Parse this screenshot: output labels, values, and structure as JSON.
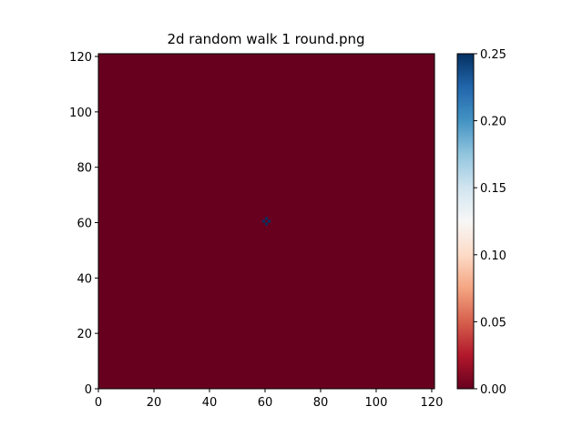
{
  "chart_data": {
    "type": "heatmap",
    "title": "2d random walk 1 round.png",
    "xlabel": "",
    "ylabel": "",
    "xlim": [
      0,
      121
    ],
    "ylim": [
      0,
      121
    ],
    "x_ticks": [
      0,
      20,
      40,
      60,
      80,
      100,
      120
    ],
    "y_ticks": [
      0,
      20,
      40,
      60,
      80,
      100,
      120
    ],
    "colormap": "RdBu",
    "background_value": 0.0,
    "nonzero_cells": [
      {
        "x": 60,
        "y": 61,
        "value": 0.25
      },
      {
        "x": 61,
        "y": 60,
        "value": 0.25
      },
      {
        "x": 60,
        "y": 59,
        "value": 0.25
      },
      {
        "x": 59,
        "y": 60,
        "value": 0.25
      }
    ],
    "colorbar": {
      "range": [
        0.0,
        0.25
      ],
      "ticks": [
        "0.00",
        "0.05",
        "0.10",
        "0.15",
        "0.20",
        "0.25"
      ]
    },
    "colors": {
      "low": "#67001f",
      "mid": "#f7f7f7",
      "high": "#053061"
    }
  }
}
